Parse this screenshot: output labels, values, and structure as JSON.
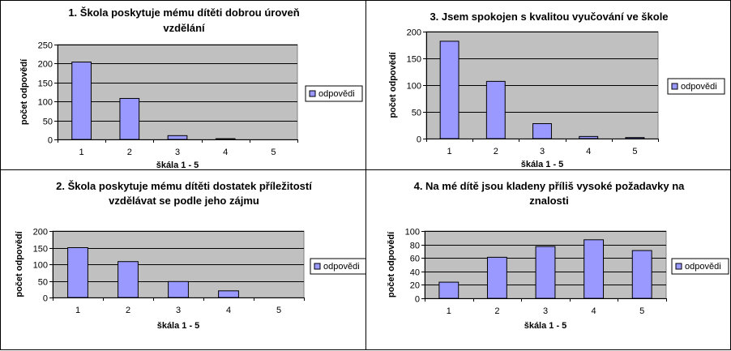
{
  "colors": {
    "plot_area": "#c0c0c0",
    "bar_fill": "#9999ff",
    "bar_stroke": "#000000",
    "gridline": "#000000"
  },
  "chart_data": [
    {
      "type": "bar",
      "title_lines": [
        "1. Škola poskytuje mému dítěti dobrou úroveň",
        "vzdělání"
      ],
      "categories": [
        "1",
        "2",
        "3",
        "4",
        "5"
      ],
      "series": [
        {
          "name": "odpovědi",
          "values": [
            204,
            108,
            10,
            2,
            0
          ]
        }
      ],
      "xlabel": "škála 1 - 5",
      "ylabel": "počet odpovědí",
      "ylim": [
        0,
        250
      ],
      "yticks": [
        0,
        50,
        100,
        150,
        200,
        250
      ],
      "grid": true,
      "legend_position": "right"
    },
    {
      "type": "bar",
      "title_lines": [
        "3. Jsem spokojen s kvalitou vyučování ve škole"
      ],
      "categories": [
        "1",
        "2",
        "3",
        "4",
        "5"
      ],
      "series": [
        {
          "name": "odpovědi",
          "values": [
            182,
            107,
            28,
            4,
            2
          ]
        }
      ],
      "xlabel": "škála 1 - 5",
      "ylabel": "počet odpovědí",
      "ylim": [
        0,
        200
      ],
      "yticks": [
        0,
        50,
        100,
        150,
        200
      ],
      "grid": true,
      "legend_position": "right"
    },
    {
      "type": "bar",
      "title_lines": [
        "2. Škola poskytuje mému dítěti dostatek příležitostí",
        "vzdělávat se podle jeho zájmu"
      ],
      "categories": [
        "1",
        "2",
        "3",
        "4",
        "5"
      ],
      "series": [
        {
          "name": "odpovědi",
          "values": [
            150,
            108,
            48,
            20,
            0
          ]
        }
      ],
      "xlabel": "škála 1 - 5",
      "ylabel": "počet odpovědí",
      "ylim": [
        0,
        200
      ],
      "yticks": [
        0,
        50,
        100,
        150,
        200
      ],
      "grid": true,
      "legend_position": "right"
    },
    {
      "type": "bar",
      "title_lines": [
        "4. Na mé dítě jsou kladeny příliš vysoké požadavky na",
        "znalosti"
      ],
      "categories": [
        "1",
        "2",
        "3",
        "4",
        "5"
      ],
      "series": [
        {
          "name": "odpovědi",
          "values": [
            24,
            61,
            77,
            87,
            71
          ]
        }
      ],
      "xlabel": "škála 1 - 5",
      "ylabel": "počet odpovědí",
      "ylim": [
        0,
        100
      ],
      "yticks": [
        0,
        20,
        40,
        60,
        80,
        100
      ],
      "grid": true,
      "legend_position": "right"
    }
  ]
}
